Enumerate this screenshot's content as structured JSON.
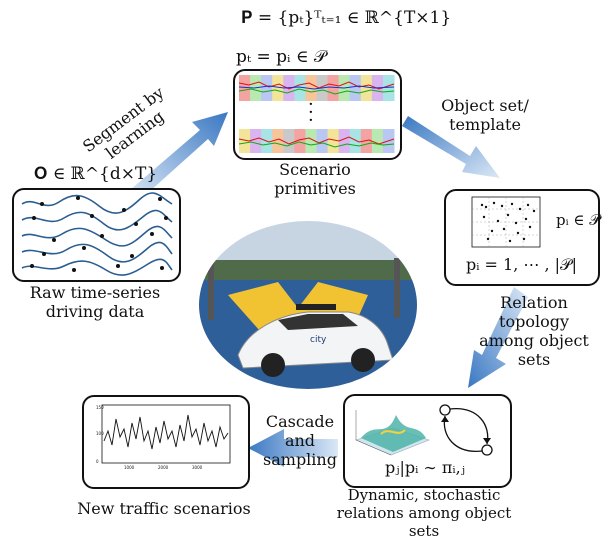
{
  "formulas": {
    "P_def": "𝐏 = {pₜ}ᵀₜ₌₁ ∈ ℝ^{T×1}",
    "pt_eq": "pₜ = pᵢ ∈ 𝒫",
    "O_def": "𝐎 ∈ ℝ^{d×T}",
    "pi_in_P": "pᵢ ∈ 𝒫",
    "pi_range": "pᵢ = 1, ⋯ , |𝒫|",
    "pj_given": "pⱼ|pᵢ ∼ πᵢ,ⱼ"
  },
  "arrow_labels": {
    "segment": "Segment by learning",
    "object_set": "Object set/ template",
    "relation": "Relation topology among object sets",
    "cascade": "Cascade and sampling"
  },
  "box_captions": {
    "primitives": "Scenario primitives",
    "raw": "Raw time-series driving data",
    "dynamic": "Dynamic, stochastic relations among object sets",
    "new": "New traffic scenarios"
  },
  "photo": {
    "car_brand": "city"
  },
  "segment_colors": [
    "#f4a3a3",
    "#b9e8b0",
    "#b8c8f2",
    "#f2e59a",
    "#d9b4ee",
    "#a8e3e6",
    "#f7c59a",
    "#c9c9c9",
    "#f4a3a3",
    "#b9e8b0",
    "#b8c8f2",
    "#f2e59a",
    "#d9b4ee",
    "#a8e3e6"
  ],
  "colors": {
    "arrow_dark": "#3a78c2",
    "arrow_light": "#dbe8f6"
  }
}
